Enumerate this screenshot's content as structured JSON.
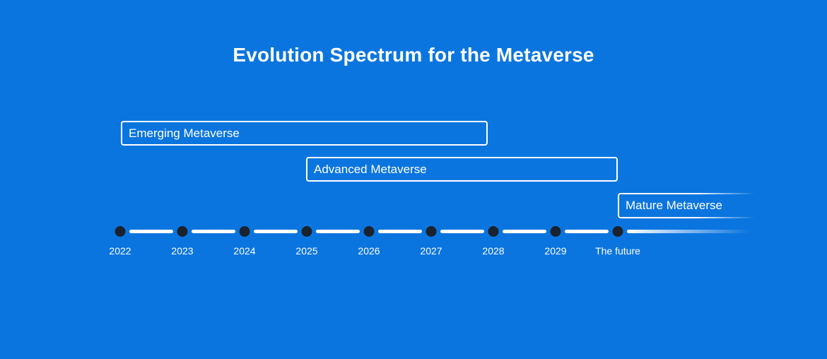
{
  "title": "Evolution Spectrum for the Metaverse",
  "phases": [
    {
      "label": "Emerging Metaverse"
    },
    {
      "label": "Advanced Metaverse"
    },
    {
      "label": "Mature Metaverse"
    }
  ],
  "timeline": {
    "labels": [
      "2022",
      "2023",
      "2024",
      "2025",
      "2026",
      "2027",
      "2028",
      "2029",
      "The future"
    ]
  },
  "colors": {
    "background": "#0b75df",
    "box_border": "#ffffff",
    "dot": "#1a222e",
    "line": "#ffffff",
    "text": "#ffffff"
  }
}
